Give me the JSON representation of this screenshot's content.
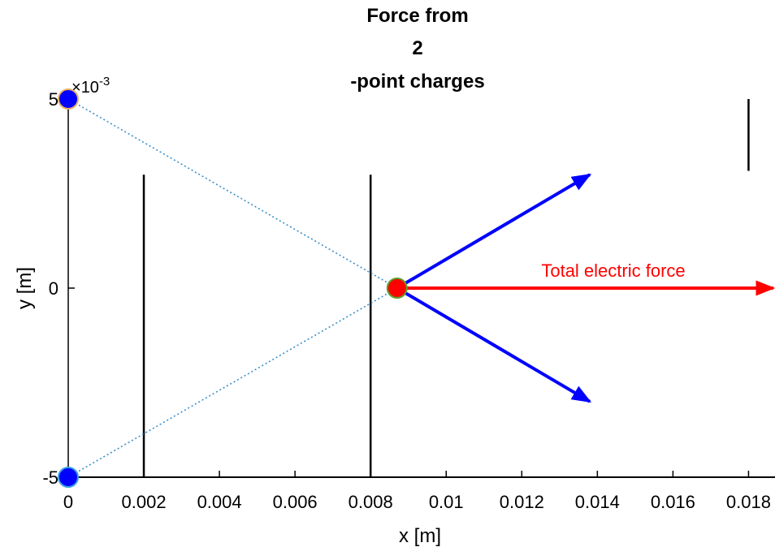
{
  "chart_data": {
    "type": "scatter",
    "title": [
      "Force from",
      "2",
      "-point charges"
    ],
    "xlabel": "x [m]",
    "ylabel": "y [m]",
    "xlim": [
      0,
      0.0187
    ],
    "ylim": [
      -0.005,
      0.005
    ],
    "x_ticks": [
      0,
      0.002,
      0.004,
      0.006,
      0.008,
      0.01,
      0.012,
      0.014,
      0.016,
      0.018
    ],
    "x_tick_labels": [
      "0",
      "0.002",
      "0.004",
      "0.006",
      "0.008",
      "0.01",
      "0.012",
      "0.014",
      "0.016",
      "0.018"
    ],
    "y_ticks": [
      -0.005,
      0,
      0.005
    ],
    "y_tick_labels": [
      "-5",
      "0",
      "5"
    ],
    "y_multiplier": {
      "base": "10",
      "exponent": "-3"
    },
    "grid": false,
    "source_charges": [
      {
        "x": 0,
        "y": 0.005,
        "color": "#0000ff",
        "edge": "#e8b060"
      },
      {
        "x": 0,
        "y": -0.005,
        "color": "#0000ff",
        "edge": "#3aa0e0"
      }
    ],
    "test_charge": {
      "x": 0.0087,
      "y": 0,
      "color": "#ff0000",
      "edge": "#5aa02c"
    },
    "field_lines": {
      "color": "#3a8fc8",
      "style": "dotted"
    },
    "force_vectors": [
      {
        "x0": 0.0087,
        "y0": 0,
        "x1": 0.0138,
        "y1": 0.003,
        "color": "#0000ff"
      },
      {
        "x0": 0.0087,
        "y0": 0,
        "x1": 0.0138,
        "y1": -0.003,
        "color": "#0000ff"
      }
    ],
    "total_force": {
      "x0": 0.0087,
      "y0": 0,
      "x1": 0.0187,
      "y1": 0,
      "color": "#ff0000",
      "label": "Total electric force"
    },
    "vertical_lines": [
      {
        "x": 0.002,
        "y0": -0.005,
        "y1": 0.003
      },
      {
        "x": 0.008,
        "y0": -0.005,
        "y1": 0.003
      },
      {
        "x": 0.018,
        "y0": 0.0031,
        "y1": 0.005
      }
    ]
  }
}
